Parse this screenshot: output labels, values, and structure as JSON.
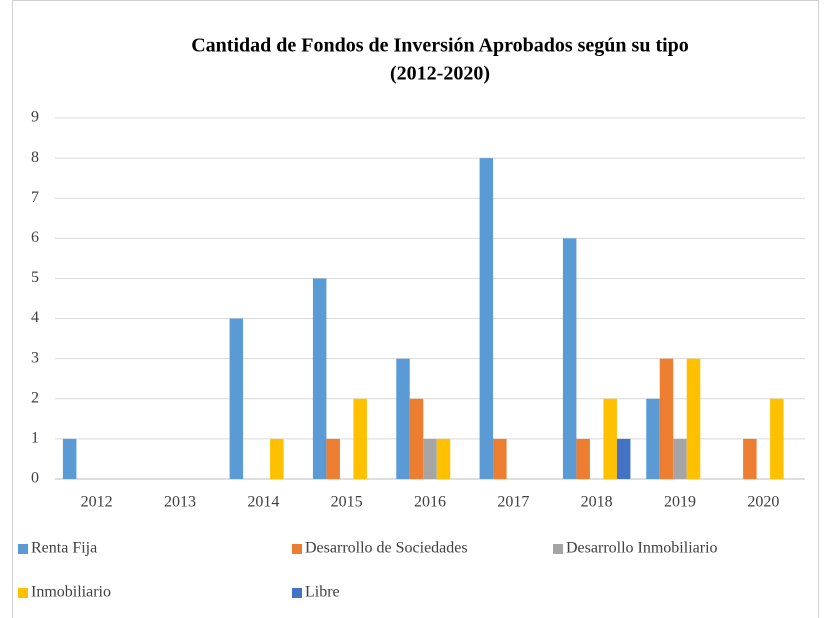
{
  "chart_data": {
    "type": "bar",
    "title": [
      "Cantidad de Fondos de Inversión Aprobados según su tipo",
      "(2012-2020)"
    ],
    "categories": [
      "2012",
      "2013",
      "2014",
      "2015",
      "2016",
      "2017",
      "2018",
      "2019",
      "2020"
    ],
    "series": [
      {
        "name": "Renta Fija",
        "color": "#5b9bd5",
        "values": [
          1,
          0,
          4,
          5,
          3,
          8,
          6,
          2,
          0
        ]
      },
      {
        "name": "Desarrollo de Sociedades",
        "color": "#ed7d31",
        "values": [
          0,
          0,
          0,
          1,
          2,
          1,
          1,
          3,
          1
        ]
      },
      {
        "name": "Desarrollo Inmobiliario",
        "color": "#a5a5a5",
        "values": [
          0,
          0,
          0,
          0,
          1,
          0,
          0,
          1,
          0
        ]
      },
      {
        "name": "Inmobiliario",
        "color": "#ffc000",
        "values": [
          0,
          0,
          1,
          2,
          1,
          0,
          2,
          3,
          2
        ]
      },
      {
        "name": "Libre",
        "color": "#4472c4",
        "values": [
          0,
          0,
          0,
          0,
          0,
          0,
          1,
          0,
          0
        ]
      }
    ],
    "ylim": [
      0,
      9
    ],
    "yticks": [
      0,
      1,
      2,
      3,
      4,
      5,
      6,
      7,
      8,
      9
    ],
    "grid": true,
    "legend": "bottom"
  }
}
